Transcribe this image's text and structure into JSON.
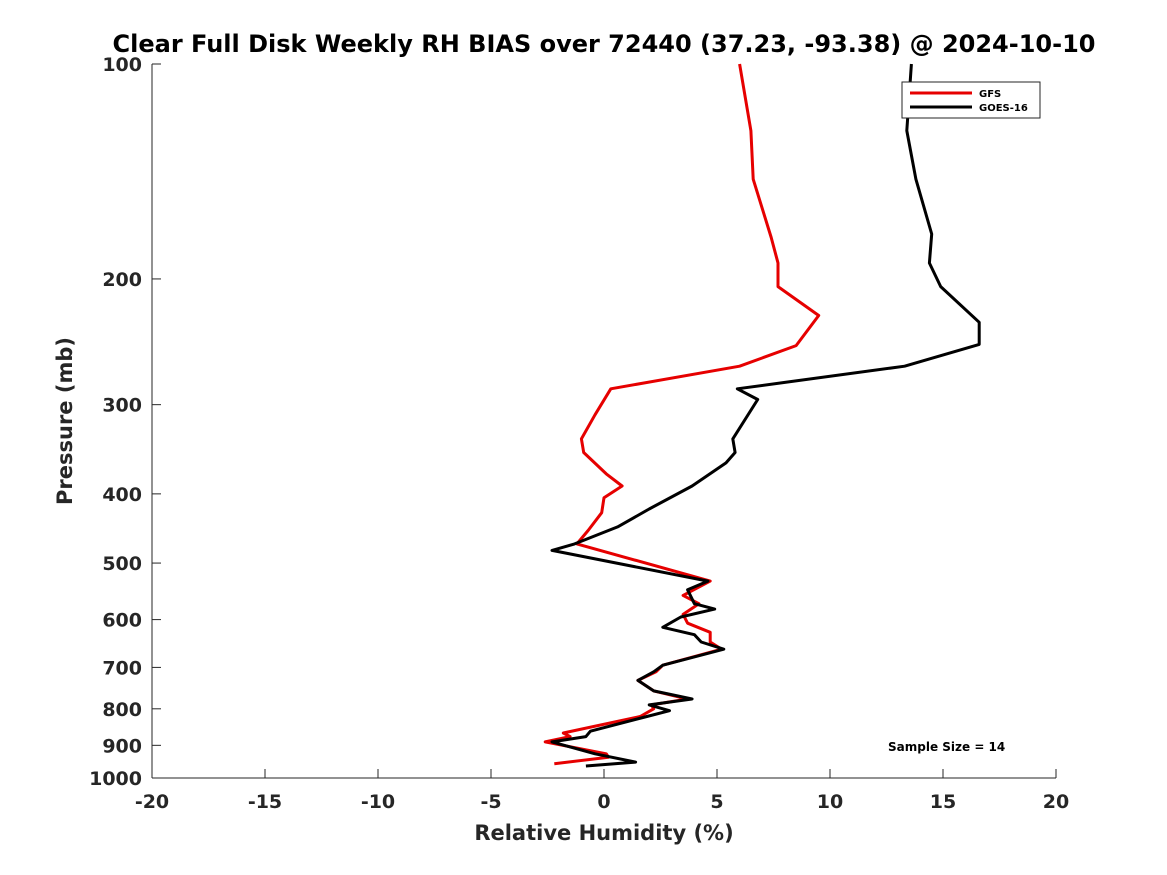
{
  "chart_data": {
    "type": "line",
    "title": "Clear Full Disk Weekly RH BIAS over 72440 (37.23, -93.38) @ 2024-10-10",
    "xlabel": "Relative Humidity (%)",
    "ylabel": "Pressure (mb)",
    "xlim": [
      -20,
      20
    ],
    "ylim": [
      100,
      1000
    ],
    "y_scale": "log",
    "y_inverted": true,
    "x_ticks": [
      -20,
      -15,
      -10,
      -5,
      0,
      5,
      10,
      15,
      20
    ],
    "y_ticks": [
      100,
      200,
      300,
      400,
      500,
      600,
      700,
      800,
      900,
      1000
    ],
    "grid": false,
    "legend_position": "top-right",
    "annotation": "Sample Size = 14",
    "series": [
      {
        "name": "GFS",
        "color": "#e60000",
        "x": [
          6.0,
          6.5,
          6.6,
          7.4,
          7.7,
          7.7,
          9.5,
          8.5,
          6.0,
          0.3,
          -0.4,
          -1.0,
          -0.9,
          0.1,
          0.8,
          0.0,
          -0.1,
          -0.7,
          -1.2,
          4.7,
          3.5,
          4.2,
          3.5,
          3.7,
          4.7,
          4.7,
          5.2,
          2.6,
          2.3,
          1.5,
          2.2,
          3.7,
          2.1,
          2.2,
          1.6,
          -1.8,
          -1.5,
          -2.6,
          0.1,
          0.2,
          -2.2
        ],
        "y": [
          100,
          124,
          145,
          175,
          190,
          205,
          225,
          248,
          265,
          285,
          310,
          335,
          350,
          375,
          390,
          405,
          425,
          450,
          470,
          530,
          555,
          570,
          590,
          607,
          625,
          645,
          660,
          695,
          710,
          730,
          755,
          775,
          790,
          800,
          820,
          865,
          875,
          890,
          925,
          935,
          955
        ]
      },
      {
        "name": "GOES-16",
        "color": "#000000",
        "x": [
          13.6,
          13.4,
          13.8,
          14.5,
          14.4,
          14.9,
          16.6,
          16.6,
          13.3,
          5.9,
          6.8,
          5.7,
          5.8,
          5.4,
          3.9,
          2.0,
          0.6,
          -1.3,
          -2.3,
          4.6,
          3.7,
          4.0,
          4.9,
          3.4,
          2.6,
          4.0,
          4.3,
          5.3,
          2.6,
          2.2,
          1.5,
          2.2,
          3.9,
          2.0,
          2.9,
          1.9,
          -0.6,
          -0.8,
          -2.3,
          -0.4,
          1.4,
          -0.8
        ],
        "y": [
          100,
          124,
          145,
          173,
          190,
          205,
          230,
          247,
          265,
          285,
          295,
          335,
          350,
          362,
          390,
          420,
          445,
          470,
          480,
          530,
          545,
          570,
          580,
          595,
          615,
          630,
          645,
          660,
          695,
          710,
          730,
          755,
          775,
          790,
          805,
          820,
          860,
          875,
          890,
          925,
          950,
          962
        ]
      }
    ]
  }
}
